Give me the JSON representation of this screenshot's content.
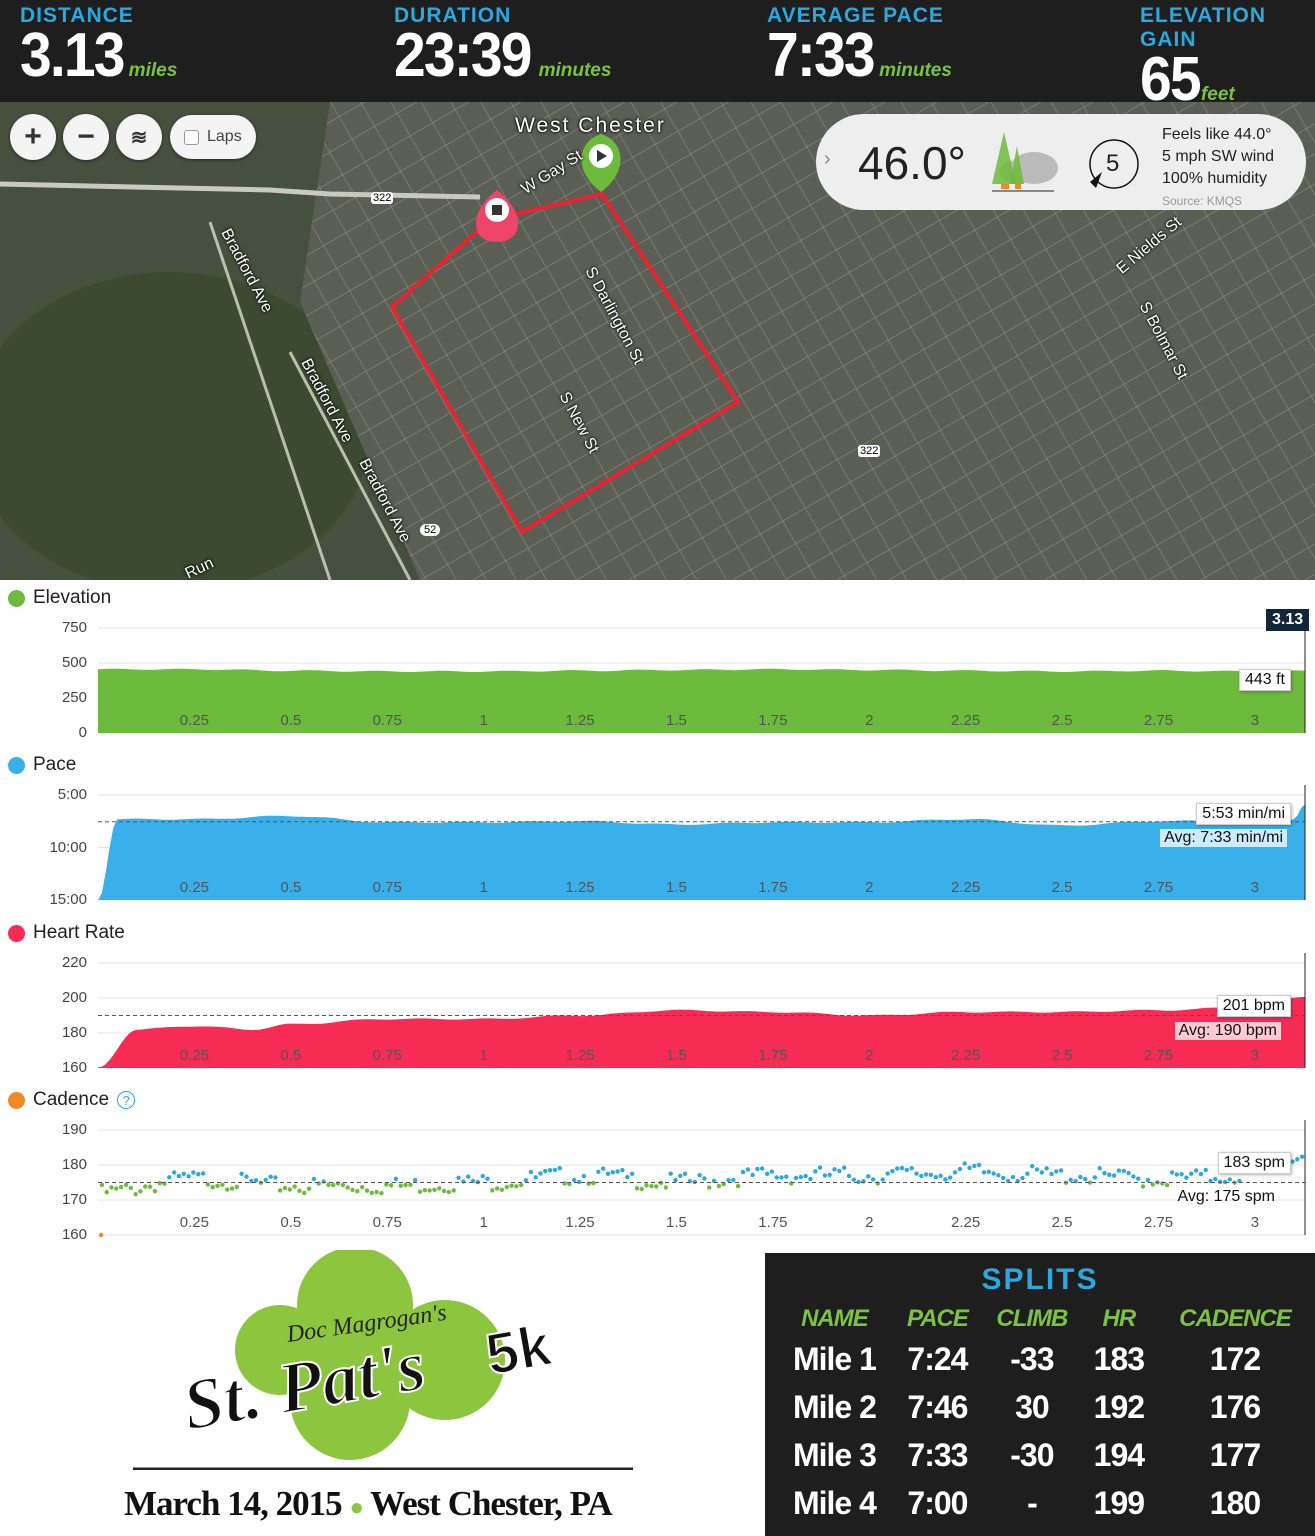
{
  "header": {
    "stats": [
      {
        "label": "DISTANCE",
        "value": "3.13",
        "unit": "miles"
      },
      {
        "label": "DURATION",
        "value": "23:39",
        "unit": "minutes"
      },
      {
        "label": "AVERAGE PACE",
        "value": "7:33",
        "unit": "minutes"
      },
      {
        "label": "ELEVATION GAIN",
        "value": "65",
        "unit": "feet"
      }
    ]
  },
  "map": {
    "controls": {
      "zoom_in": "+",
      "zoom_out": "−",
      "laps_label": "Laps"
    },
    "labels": [
      "West Chester",
      "W Gay St",
      "Bradford Ave",
      "Bradford Ave",
      "Bradford Ave",
      "S Darlington St",
      "S New St",
      "S Bolmar St",
      "E Nields St",
      "Run",
      "322",
      "322",
      "52"
    ],
    "weather": {
      "temp": "46.0°",
      "wind_speed": "5",
      "feels_like": "Feels like 44.0°",
      "wind": "5 mph SW wind",
      "humidity": "100% humidity",
      "source": "Source: KMQS"
    },
    "route_color": "#e8232f"
  },
  "charts": [
    {
      "name": "Elevation",
      "color": "#6cbb3c",
      "type": "area",
      "y_ticks": [
        "750",
        "500",
        "250",
        "0"
      ],
      "ylim": [
        0,
        750
      ],
      "x_ticks": [
        "0.25",
        "0.5",
        "0.75",
        "1",
        "1.25",
        "1.5",
        "1.75",
        "2",
        "2.25",
        "2.5",
        "2.75",
        "3"
      ],
      "x": [
        0,
        0.25,
        0.5,
        0.75,
        1,
        1.25,
        1.5,
        1.75,
        2,
        2.25,
        2.5,
        2.75,
        3,
        3.13
      ],
      "values": [
        455,
        455,
        445,
        440,
        440,
        445,
        450,
        455,
        450,
        445,
        440,
        445,
        440,
        443
      ],
      "cursor_label": "3.13",
      "tooltip": "443 ft"
    },
    {
      "name": "Pace",
      "color": "#3ab0ea",
      "type": "area",
      "y_ticks": [
        "5:00",
        "10:00",
        "15:00"
      ],
      "ylim_min_per_mi": [
        5,
        15
      ],
      "reversed": true,
      "x_ticks": [
        "0.25",
        "0.5",
        "0.75",
        "1",
        "1.25",
        "1.5",
        "1.75",
        "2",
        "2.25",
        "2.5",
        "2.75",
        "3"
      ],
      "x": [
        0,
        0.05,
        0.25,
        0.5,
        0.75,
        1,
        1.25,
        1.5,
        1.75,
        2,
        2.25,
        2.5,
        2.75,
        3,
        3.1,
        3.13
      ],
      "values": [
        15,
        7.3,
        7.3,
        7.0,
        7.6,
        7.6,
        7.5,
        7.8,
        7.6,
        7.6,
        7.3,
        7.9,
        7.5,
        7.4,
        7.3,
        5.9
      ],
      "average": 7.55,
      "avg_label": "Avg: 7:33 min/mi",
      "tooltip": "5:53 min/mi"
    },
    {
      "name": "Heart Rate",
      "color": "#f72c55",
      "type": "area",
      "y_ticks": [
        "220",
        "200",
        "180",
        "160"
      ],
      "ylim": [
        160,
        220
      ],
      "x_ticks": [
        "0.25",
        "0.5",
        "0.75",
        "1",
        "1.25",
        "1.5",
        "1.75",
        "2",
        "2.25",
        "2.5",
        "2.75",
        "3"
      ],
      "x": [
        0,
        0.1,
        0.25,
        0.4,
        0.5,
        0.75,
        1,
        1.25,
        1.5,
        1.75,
        2,
        2.25,
        2.5,
        2.75,
        3,
        3.13
      ],
      "values": [
        160,
        182,
        184,
        182,
        185,
        188,
        188,
        190,
        193,
        192,
        190,
        192,
        192,
        193,
        195,
        201
      ],
      "average": 190,
      "avg_label": "Avg: 190 bpm",
      "tooltip": "201 bpm"
    },
    {
      "name": "Cadence",
      "color": "#f08a24",
      "type": "scatter",
      "help_icon": "question-circle-icon",
      "y_ticks": [
        "190",
        "180",
        "170",
        "160"
      ],
      "ylim": [
        160,
        190
      ],
      "x_ticks": [
        "0.25",
        "0.5",
        "0.75",
        "1",
        "1.25",
        "1.5",
        "1.75",
        "2",
        "2.25",
        "2.5",
        "2.75",
        "3"
      ],
      "x": [
        0,
        0.25,
        0.5,
        0.75,
        1,
        1.25,
        1.5,
        1.75,
        2,
        2.25,
        2.5,
        2.75,
        3,
        3.13
      ],
      "values": [
        172,
        176,
        174,
        174,
        175,
        177,
        175,
        177,
        177,
        178,
        177,
        176,
        177,
        183
      ],
      "average": 175,
      "avg_label": "Avg: 175 spm",
      "tooltip": "183 spm",
      "point_colors": {
        "above": "#2aa8e0",
        "below": "#6cbb3c"
      }
    }
  ],
  "event": {
    "logo_text": [
      "Doc Magrogan's",
      "St. Pat's",
      "5k"
    ],
    "date": "March 14, 2015",
    "place": "West Chester, PA"
  },
  "splits": {
    "title": "SPLITS",
    "columns": [
      "NAME",
      "PACE",
      "CLIMB",
      "HR",
      "CADENCE"
    ],
    "rows": [
      [
        "Mile 1",
        "7:24",
        "-33",
        "183",
        "172"
      ],
      [
        "Mile 2",
        "7:46",
        "30",
        "192",
        "176"
      ],
      [
        "Mile 3",
        "7:33",
        "-30",
        "194",
        "177"
      ],
      [
        "Mile 4",
        "7:00",
        "-",
        "199",
        "180"
      ]
    ]
  }
}
